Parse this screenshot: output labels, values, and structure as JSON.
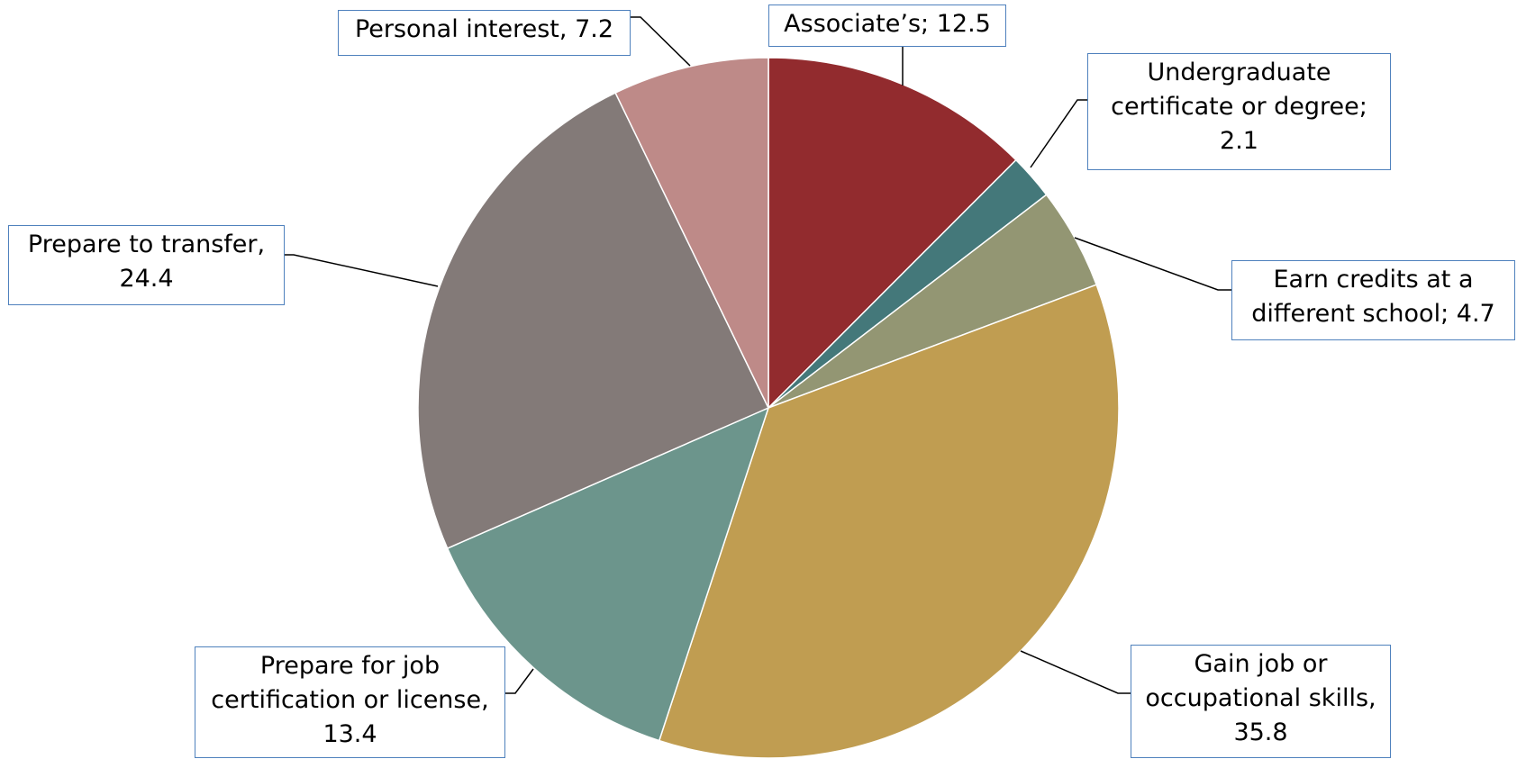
{
  "chart_data": {
    "type": "pie",
    "categories": [
      "Associate’s;",
      "Undergraduate certificate or degree;",
      "Earn credits at a different school;",
      "Gain job or occupational skills,",
      "Prepare for job certification or license,",
      "Prepare to transfer,",
      "Personal interest,"
    ],
    "values": [
      12.5,
      2.1,
      4.7,
      35.8,
      13.4,
      24.4,
      7.2
    ],
    "colors": [
      "#922b2e",
      "#44787a",
      "#939673",
      "#c09d51",
      "#6c958c",
      "#837a78",
      "#be8a88"
    ]
  }
}
